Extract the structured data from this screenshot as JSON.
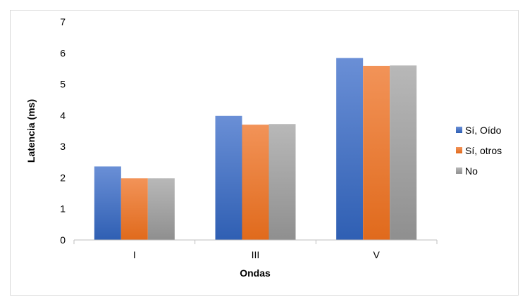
{
  "chart_data": {
    "type": "bar",
    "categories": [
      "I",
      "III",
      "V"
    ],
    "series": [
      {
        "name": "Sí, Oído",
        "values": [
          2.36,
          3.98,
          5.84
        ],
        "color": "#4472c4"
      },
      {
        "name": "Sí, otros",
        "values": [
          1.98,
          3.7,
          5.58
        ],
        "color": "#ed7d31"
      },
      {
        "name": "No",
        "values": [
          1.98,
          3.72,
          5.6
        ],
        "color": "#a5a5a5"
      }
    ],
    "xlabel": "Ondas",
    "ylabel": "Latencia (ms)",
    "ylim": [
      0,
      7
    ],
    "yticks": [
      0,
      1,
      2,
      3,
      4,
      5,
      6,
      7
    ],
    "grid": false,
    "legend_position": "right"
  }
}
